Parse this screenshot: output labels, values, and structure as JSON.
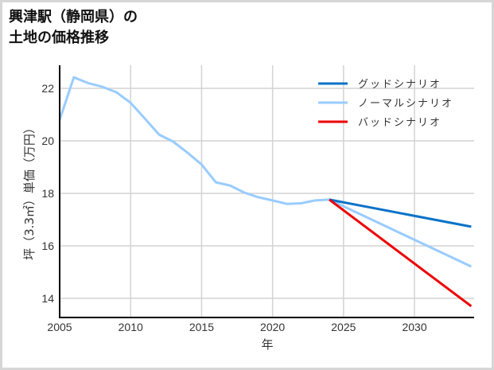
{
  "title": {
    "line1": "興津駅（静岡県）の",
    "line2": "土地の価格推移"
  },
  "colors": {
    "good": "#0a72c8",
    "normal": "#99ccff",
    "bad": "#ee0000",
    "grid": "#d3d3d3",
    "axis": "#000000"
  },
  "chart_data": {
    "type": "line",
    "title": "興津駅（静岡県）の土地の価格推移",
    "xlabel": "年",
    "ylabel": "坪（3.3㎡）単価（万円）",
    "xlim": [
      2005,
      2034.2
    ],
    "ylim": [
      13.27,
      22.88
    ],
    "xticks": [
      2005,
      2010,
      2015,
      2020,
      2025,
      2030
    ],
    "yticks": [
      14,
      16,
      18,
      20,
      22
    ],
    "grid": true,
    "legend_position": "upper right",
    "series": [
      {
        "name": "グッドシナリオ",
        "color": "#0a72c8",
        "x": [
          2024,
          2034
        ],
        "values": [
          17.76,
          16.73
        ]
      },
      {
        "name": "ノーマルシナリオ",
        "color": "#99ccff",
        "x": [
          2005,
          2006,
          2007,
          2008,
          2009,
          2010,
          2011,
          2012,
          2013,
          2014,
          2015,
          2016,
          2017,
          2018,
          2019,
          2020,
          2021,
          2022,
          2023,
          2024,
          2034
        ],
        "values": [
          20.8,
          22.42,
          22.2,
          22.06,
          21.85,
          21.45,
          20.85,
          20.24,
          19.97,
          19.55,
          19.1,
          18.42,
          18.3,
          18.03,
          17.85,
          17.73,
          17.6,
          17.62,
          17.73,
          17.76,
          15.21
        ]
      },
      {
        "name": "バッドシナリオ",
        "color": "#ee0000",
        "x": [
          2024,
          2034
        ],
        "values": [
          17.76,
          13.7
        ]
      }
    ]
  }
}
